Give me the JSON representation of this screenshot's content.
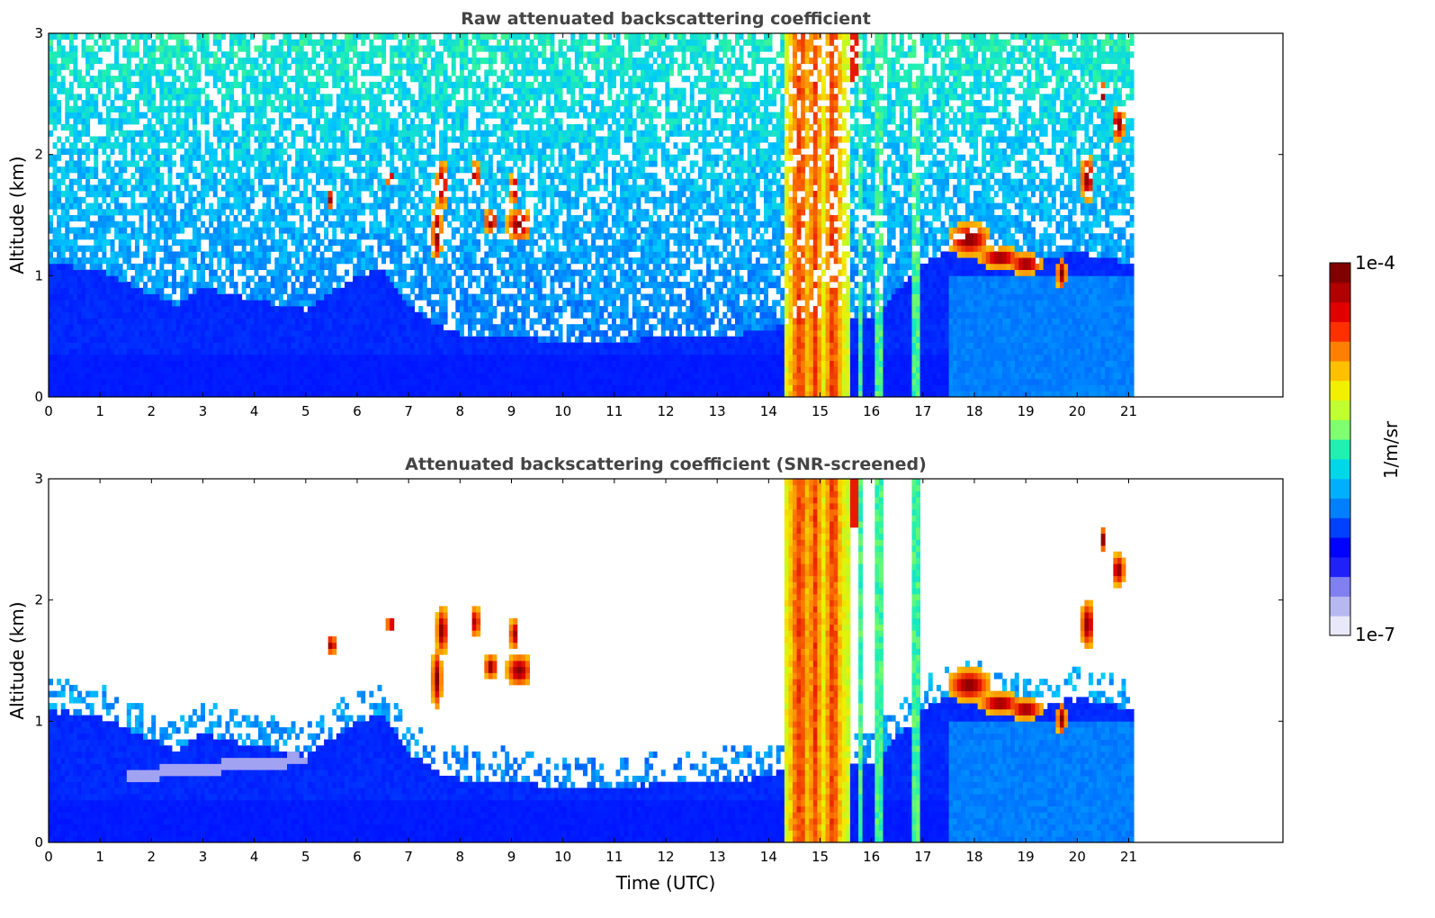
{
  "chart_data": [
    {
      "type": "heatmap",
      "title": "Raw attenuated backscattering coefficient",
      "xlabel": "",
      "ylabel": "Altitude (km)",
      "x_range": [
        0,
        24
      ],
      "y_range": [
        0,
        3
      ],
      "x_ticks": [
        "0",
        "1",
        "2",
        "3",
        "4",
        "5",
        "6",
        "7",
        "8",
        "9",
        "10",
        "11",
        "12",
        "13",
        "14",
        "15",
        "16",
        "17",
        "18",
        "19",
        "20",
        "21"
      ],
      "y_ticks": [
        "0",
        "1",
        "2",
        "3"
      ],
      "data_end_hour": 21.1,
      "color_scale": "log",
      "features": [
        {
          "kind": "dense-aerosol-layer",
          "x": [
            0,
            21.1
          ],
          "top_km": 0.6
        },
        {
          "kind": "precipitation-streak",
          "x": [
            14.3,
            15.6
          ],
          "y": [
            0,
            3
          ]
        },
        {
          "kind": "thin-vertical-streaks",
          "x": [
            15.7,
            17.0
          ]
        },
        {
          "kind": "cloud-patches",
          "x": [
            5.4,
            9.5
          ],
          "y": [
            1.2,
            1.9
          ]
        },
        {
          "kind": "cloud-layer",
          "x": [
            17.6,
            21.0
          ],
          "y": [
            0.9,
            2.4
          ]
        }
      ]
    },
    {
      "type": "heatmap",
      "title": "Attenuated backscattering coefficient (SNR-screened)",
      "xlabel": "Time (UTC)",
      "ylabel": "Altitude (km)",
      "x_range": [
        0,
        24
      ],
      "y_range": [
        0,
        3
      ],
      "x_ticks": [
        "0",
        "1",
        "2",
        "3",
        "4",
        "5",
        "6",
        "7",
        "8",
        "9",
        "10",
        "11",
        "12",
        "13",
        "14",
        "15",
        "16",
        "17",
        "18",
        "19",
        "20",
        "21"
      ],
      "y_ticks": [
        "0",
        "1",
        "2",
        "3"
      ],
      "data_end_hour": 21.1,
      "color_scale": "log",
      "boundary_layer_top_km": [
        [
          0,
          1.1
        ],
        [
          1,
          1.05
        ],
        [
          2,
          0.85
        ],
        [
          2.5,
          0.75
        ],
        [
          3,
          0.9
        ],
        [
          4,
          0.8
        ],
        [
          5,
          0.72
        ],
        [
          6,
          1.0
        ],
        [
          6.5,
          1.05
        ],
        [
          7,
          0.75
        ],
        [
          7.5,
          0.6
        ],
        [
          8,
          0.52
        ],
        [
          9,
          0.5
        ],
        [
          10,
          0.45
        ],
        [
          11,
          0.45
        ],
        [
          12,
          0.5
        ],
        [
          13,
          0.5
        ],
        [
          14,
          0.55
        ],
        [
          14.3,
          0.6
        ],
        [
          16,
          0.65
        ],
        [
          17,
          1.1
        ],
        [
          17.5,
          1.2
        ],
        [
          18,
          1.25
        ],
        [
          19,
          1.1
        ],
        [
          20,
          1.2
        ],
        [
          21,
          1.1
        ]
      ]
    }
  ],
  "colorbar": {
    "label": "1/m/sr",
    "max_label": "1e-4",
    "min_label": "1e-7",
    "colors": [
      "#e8e8f8",
      "#b8b8f0",
      "#8080f0",
      "#2020f8",
      "#0000ff",
      "#0040ff",
      "#0080ff",
      "#00b0ff",
      "#00d8e8",
      "#20f0b0",
      "#80ff70",
      "#c0ff30",
      "#f0f000",
      "#ffc000",
      "#ff8000",
      "#ff3000",
      "#e00000",
      "#b00000",
      "#800000"
    ]
  }
}
